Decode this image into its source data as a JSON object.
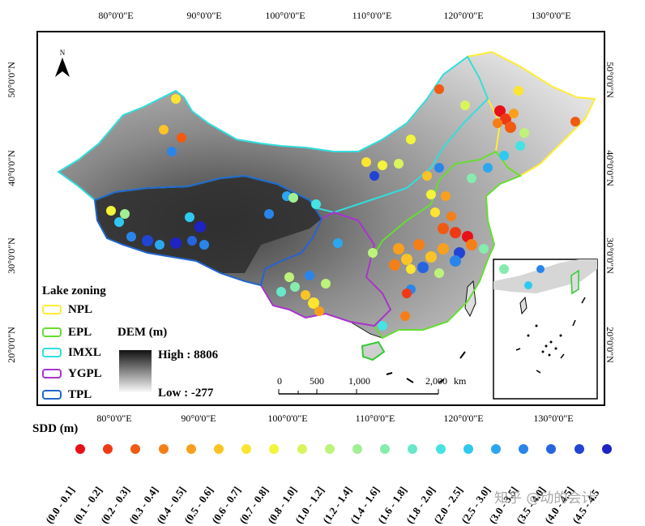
{
  "axes": {
    "lon_ticks": [
      "80°0'0\"E",
      "90°0'0\"E",
      "100°0'0\"E",
      "110°0'0\"E",
      "120°0'0\"E",
      "130°0'0\"E"
    ],
    "lat_ticks": [
      "50°0'0\"N",
      "40°0'0\"N",
      "30°0'0\"N",
      "20°0'0\"N"
    ]
  },
  "north_arrow": {
    "label": "N"
  },
  "lake_zoning": {
    "title": "Lake zoning",
    "zones": [
      {
        "label": "NPL",
        "color": "#ffee33"
      },
      {
        "label": "EPL",
        "color": "#66dd33"
      },
      {
        "label": "IMXL",
        "color": "#33dddd"
      },
      {
        "label": "YGPL",
        "color": "#aa33cc"
      },
      {
        "label": "TPL",
        "color": "#2266cc"
      }
    ]
  },
  "dem": {
    "title": "DEM (m)",
    "high": "High : 8806",
    "low": "Low : -277"
  },
  "scale_bar": {
    "ticks": [
      "0",
      "500",
      "1,000",
      "2,000"
    ],
    "unit": "km"
  },
  "sdd": {
    "title": "SDD (m)",
    "classes": [
      {
        "label": "(0.0 - 0.1]",
        "color": "#e8101a"
      },
      {
        "label": "(0.1 - 0.2]",
        "color": "#ee3a14"
      },
      {
        "label": "(0.2 - 0.3]",
        "color": "#f05a12"
      },
      {
        "label": "(0.3 - 0.4]",
        "color": "#f57f17"
      },
      {
        "label": "(0.4 - 0.5]",
        "color": "#f8a01d"
      },
      {
        "label": "(0.5 - 0.6]",
        "color": "#fbc325"
      },
      {
        "label": "(0.6 - 0.7]",
        "color": "#fde430"
      },
      {
        "label": "(0.7 - 0.8]",
        "color": "#f3f53a"
      },
      {
        "label": "(0.8 - 1.0]",
        "color": "#d8f55e"
      },
      {
        "label": "(1.0 - 1.2]",
        "color": "#bdf37a"
      },
      {
        "label": "(1.2 - 1.4]",
        "color": "#a1ef94"
      },
      {
        "label": "(1.4 - 1.6]",
        "color": "#86ebad"
      },
      {
        "label": "(1.6 - 1.8]",
        "color": "#68e8c8"
      },
      {
        "label": "(1.8 - 2.0]",
        "color": "#46e3e3"
      },
      {
        "label": "(2.0 - 2.5]",
        "color": "#2fc9f0"
      },
      {
        "label": "(2.5 - 3.0]",
        "color": "#2ba7f0"
      },
      {
        "label": "(3.0 - 3.5]",
        "color": "#2a85ea"
      },
      {
        "label": "(3.5 - 4.0]",
        "color": "#2764e0"
      },
      {
        "label": "(4.0 - 4.5]",
        "color": "#2244d2"
      },
      {
        "label": "(4.5 - 4.5",
        "color": "#1d23c4"
      }
    ]
  },
  "watermark": "知乎 @动的会计"
}
